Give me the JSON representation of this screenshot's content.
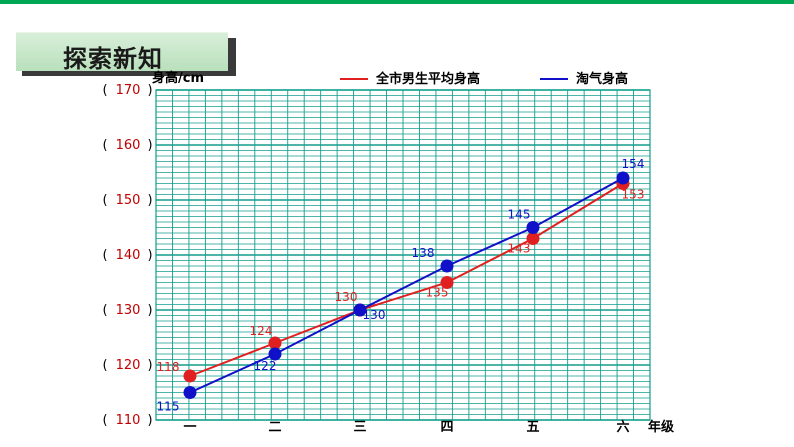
{
  "header": {
    "badge_text": "探索新知"
  },
  "chart_data": {
    "type": "line",
    "ylabel": "身高/cm",
    "xlabel": "年级",
    "categories": [
      "一",
      "二",
      "三",
      "四",
      "五",
      "六"
    ],
    "ylim": [
      110,
      170
    ],
    "y_ticks": [
      110,
      120,
      130,
      140,
      150,
      160,
      170
    ],
    "grid": true,
    "legend_position": "top-right",
    "series": [
      {
        "name": "全市男生平均身高",
        "color": "#e02020",
        "values": [
          118,
          124,
          130,
          135,
          143,
          153
        ],
        "labels": [
          "118",
          "124",
          "130",
          "135",
          "143",
          "153"
        ]
      },
      {
        "name": "淘气身高",
        "color": "#1010c8",
        "values": [
          115,
          122,
          130,
          138,
          145,
          154
        ],
        "labels": [
          "115",
          "122",
          "130",
          "138",
          "145",
          "154"
        ]
      }
    ]
  }
}
